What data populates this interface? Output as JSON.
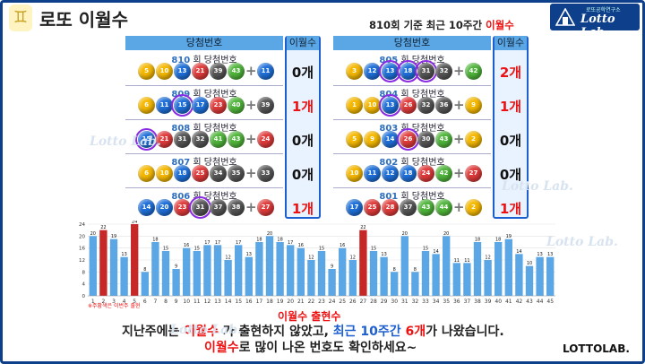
{
  "header": {
    "icon_glyph": "♊",
    "title": "로또 이월수",
    "subtitle_prefix": "810회 기준 최근 10주간 ",
    "subtitle_highlight": "이월수",
    "brand_small": "로또공학연구소",
    "brand_big": "Lotto Lab."
  },
  "table": {
    "col_draw": "당첨번호",
    "col_count": "이월수",
    "draw_suffix": " 회 당첨번호",
    "left": [
      {
        "draw": "810",
        "balls": [
          {
            "n": "5",
            "c": "#f5b800"
          },
          {
            "n": "10",
            "c": "#f5b800"
          },
          {
            "n": "13",
            "c": "#1e6fd9"
          },
          {
            "n": "21",
            "c": "#e03a3a"
          },
          {
            "n": "39",
            "c": "#555555"
          },
          {
            "n": "43",
            "c": "#4fb53a"
          }
        ],
        "bonus": {
          "n": "11",
          "c": "#1e6fd9"
        },
        "count": "0개",
        "red": false
      },
      {
        "draw": "809",
        "balls": [
          {
            "n": "6",
            "c": "#f5b800"
          },
          {
            "n": "11",
            "c": "#1e6fd9"
          },
          {
            "n": "15",
            "c": "#1e6fd9",
            "hl": true
          },
          {
            "n": "17",
            "c": "#1e6fd9"
          },
          {
            "n": "23",
            "c": "#e03a3a"
          },
          {
            "n": "40",
            "c": "#4fb53a"
          }
        ],
        "bonus": {
          "n": "39",
          "c": "#555555"
        },
        "count": "1개",
        "red": true
      },
      {
        "draw": "808",
        "balls": [
          {
            "n": "15",
            "c": "#1e6fd9",
            "hl": true
          },
          {
            "n": "21",
            "c": "#e03a3a"
          },
          {
            "n": "31",
            "c": "#555555"
          },
          {
            "n": "32",
            "c": "#555555"
          },
          {
            "n": "41",
            "c": "#4fb53a"
          },
          {
            "n": "43",
            "c": "#4fb53a"
          }
        ],
        "bonus": {
          "n": "24",
          "c": "#e03a3a"
        },
        "count": "0개",
        "red": false
      },
      {
        "draw": "807",
        "balls": [
          {
            "n": "6",
            "c": "#f5b800"
          },
          {
            "n": "10",
            "c": "#f5b800"
          },
          {
            "n": "18",
            "c": "#1e6fd9"
          },
          {
            "n": "25",
            "c": "#e03a3a"
          },
          {
            "n": "34",
            "c": "#555555"
          },
          {
            "n": "35",
            "c": "#555555"
          }
        ],
        "bonus": {
          "n": "33",
          "c": "#555555"
        },
        "count": "0개",
        "red": false
      },
      {
        "draw": "806",
        "balls": [
          {
            "n": "14",
            "c": "#1e6fd9"
          },
          {
            "n": "20",
            "c": "#1e6fd9"
          },
          {
            "n": "23",
            "c": "#e03a3a"
          },
          {
            "n": "31",
            "c": "#555555",
            "hl": true
          },
          {
            "n": "37",
            "c": "#555555"
          },
          {
            "n": "38",
            "c": "#555555"
          }
        ],
        "bonus": {
          "n": "27",
          "c": "#e03a3a"
        },
        "count": "1개",
        "red": true
      }
    ],
    "right": [
      {
        "draw": "805",
        "balls": [
          {
            "n": "3",
            "c": "#f5b800"
          },
          {
            "n": "12",
            "c": "#1e6fd9"
          },
          {
            "n": "13",
            "c": "#1e6fd9",
            "hl": true
          },
          {
            "n": "18",
            "c": "#1e6fd9",
            "hl": true
          },
          {
            "n": "31",
            "c": "#555555",
            "hl": true
          },
          {
            "n": "32",
            "c": "#555555"
          }
        ],
        "bonus": {
          "n": "42",
          "c": "#4fb53a"
        },
        "count": "2개",
        "red": true
      },
      {
        "draw": "804",
        "balls": [
          {
            "n": "1",
            "c": "#f5b800"
          },
          {
            "n": "10",
            "c": "#f5b800"
          },
          {
            "n": "13",
            "c": "#1e6fd9",
            "hl": true
          },
          {
            "n": "26",
            "c": "#e03a3a"
          },
          {
            "n": "32",
            "c": "#555555"
          },
          {
            "n": "36",
            "c": "#555555"
          }
        ],
        "bonus": {
          "n": "9",
          "c": "#f5b800"
        },
        "count": "1개",
        "red": true
      },
      {
        "draw": "803",
        "balls": [
          {
            "n": "5",
            "c": "#f5b800"
          },
          {
            "n": "9",
            "c": "#f5b800"
          },
          {
            "n": "14",
            "c": "#1e6fd9"
          },
          {
            "n": "26",
            "c": "#e03a3a",
            "hl": true
          },
          {
            "n": "30",
            "c": "#555555"
          },
          {
            "n": "43",
            "c": "#4fb53a"
          }
        ],
        "bonus": {
          "n": "2",
          "c": "#f5b800"
        },
        "count": "0개",
        "red": false
      },
      {
        "draw": "802",
        "balls": [
          {
            "n": "10",
            "c": "#f5b800"
          },
          {
            "n": "11",
            "c": "#1e6fd9"
          },
          {
            "n": "12",
            "c": "#1e6fd9"
          },
          {
            "n": "18",
            "c": "#1e6fd9"
          },
          {
            "n": "24",
            "c": "#e03a3a"
          },
          {
            "n": "42",
            "c": "#4fb53a"
          }
        ],
        "bonus": {
          "n": "27",
          "c": "#e03a3a"
        },
        "count": "0개",
        "red": false
      },
      {
        "draw": "801",
        "balls": [
          {
            "n": "17",
            "c": "#1e6fd9"
          },
          {
            "n": "25",
            "c": "#e03a3a"
          },
          {
            "n": "28",
            "c": "#e03a3a"
          },
          {
            "n": "37",
            "c": "#555555"
          },
          {
            "n": "43",
            "c": "#4fb53a"
          },
          {
            "n": "44",
            "c": "#4fb53a"
          }
        ],
        "bonus": {
          "n": "2",
          "c": "#f5b800"
        },
        "count": "1개",
        "red": true
      }
    ]
  },
  "chart_data": {
    "type": "bar",
    "categories": [
      "1",
      "2",
      "3",
      "4",
      "5",
      "6",
      "7",
      "8",
      "9",
      "10",
      "11",
      "12",
      "13",
      "14",
      "15",
      "16",
      "17",
      "18",
      "19",
      "20",
      "21",
      "22",
      "23",
      "24",
      "25",
      "26",
      "27",
      "28",
      "29",
      "30",
      "31",
      "32",
      "33",
      "34",
      "35",
      "36",
      "37",
      "38",
      "39",
      "40",
      "41",
      "42",
      "43",
      "44",
      "45"
    ],
    "values": [
      20,
      22,
      19,
      13,
      24,
      8,
      18,
      15,
      9,
      16,
      15,
      17,
      17,
      12,
      17,
      13,
      18,
      20,
      18,
      17,
      16,
      12,
      15,
      9,
      16,
      12,
      22,
      15,
      13,
      8,
      20,
      8,
      15,
      14,
      20,
      11,
      11,
      18,
      12,
      18,
      19,
      14,
      10,
      13,
      13
    ],
    "highlight": [
      "2",
      "5",
      "27"
    ],
    "ylim": [
      0,
      24
    ],
    "yticks": [
      0,
      4,
      8,
      12,
      16,
      20,
      24
    ],
    "colors": {
      "normal": "#5ba7e6",
      "highlight": "#c62828"
    },
    "xlabel": "",
    "ylabel": ""
  },
  "notes": {
    "chart_note": "※주황색은 이번주 출현",
    "legend_head": "이월수 출현수"
  },
  "message": {
    "l1_a": "지난주에는 ",
    "l1_b": "이월수",
    "l1_c": " 가 출현하지 않았고, ",
    "l1_d": "최근 10주간",
    "l1_e": " 6개",
    "l1_f": "가 나왔습니다.",
    "l2_a": "이월수",
    "l2_b": "로 많이 나온 번호도 확인하세요~"
  },
  "footer": {
    "brand": "LOTTOLAB."
  },
  "watermark": "Lotto Lab."
}
